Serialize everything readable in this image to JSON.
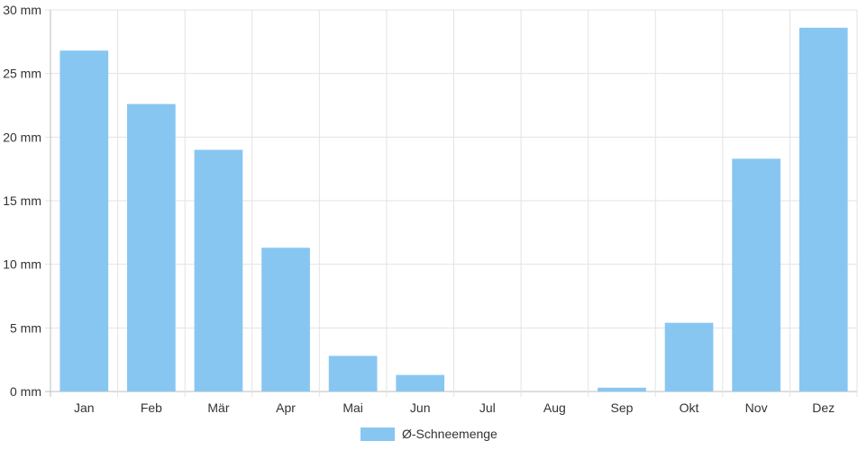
{
  "chart_data": {
    "type": "bar",
    "categories": [
      "Jan",
      "Feb",
      "Mär",
      "Apr",
      "Mai",
      "Jun",
      "Jul",
      "Aug",
      "Sep",
      "Okt",
      "Nov",
      "Dez"
    ],
    "series": [
      {
        "name": "Ø-Schneemenge",
        "values": [
          26.8,
          22.6,
          19.0,
          11.3,
          2.8,
          1.3,
          0,
          0,
          0.3,
          5.4,
          18.3,
          28.6
        ],
        "color": "#88c6f2"
      }
    ],
    "ylim": [
      0,
      30
    ],
    "yticks": [
      "0 mm",
      "5 mm",
      "10 mm",
      "15 mm",
      "20 mm",
      "25 mm",
      "30 mm"
    ],
    "grid": true,
    "legend_position": "bottom"
  }
}
